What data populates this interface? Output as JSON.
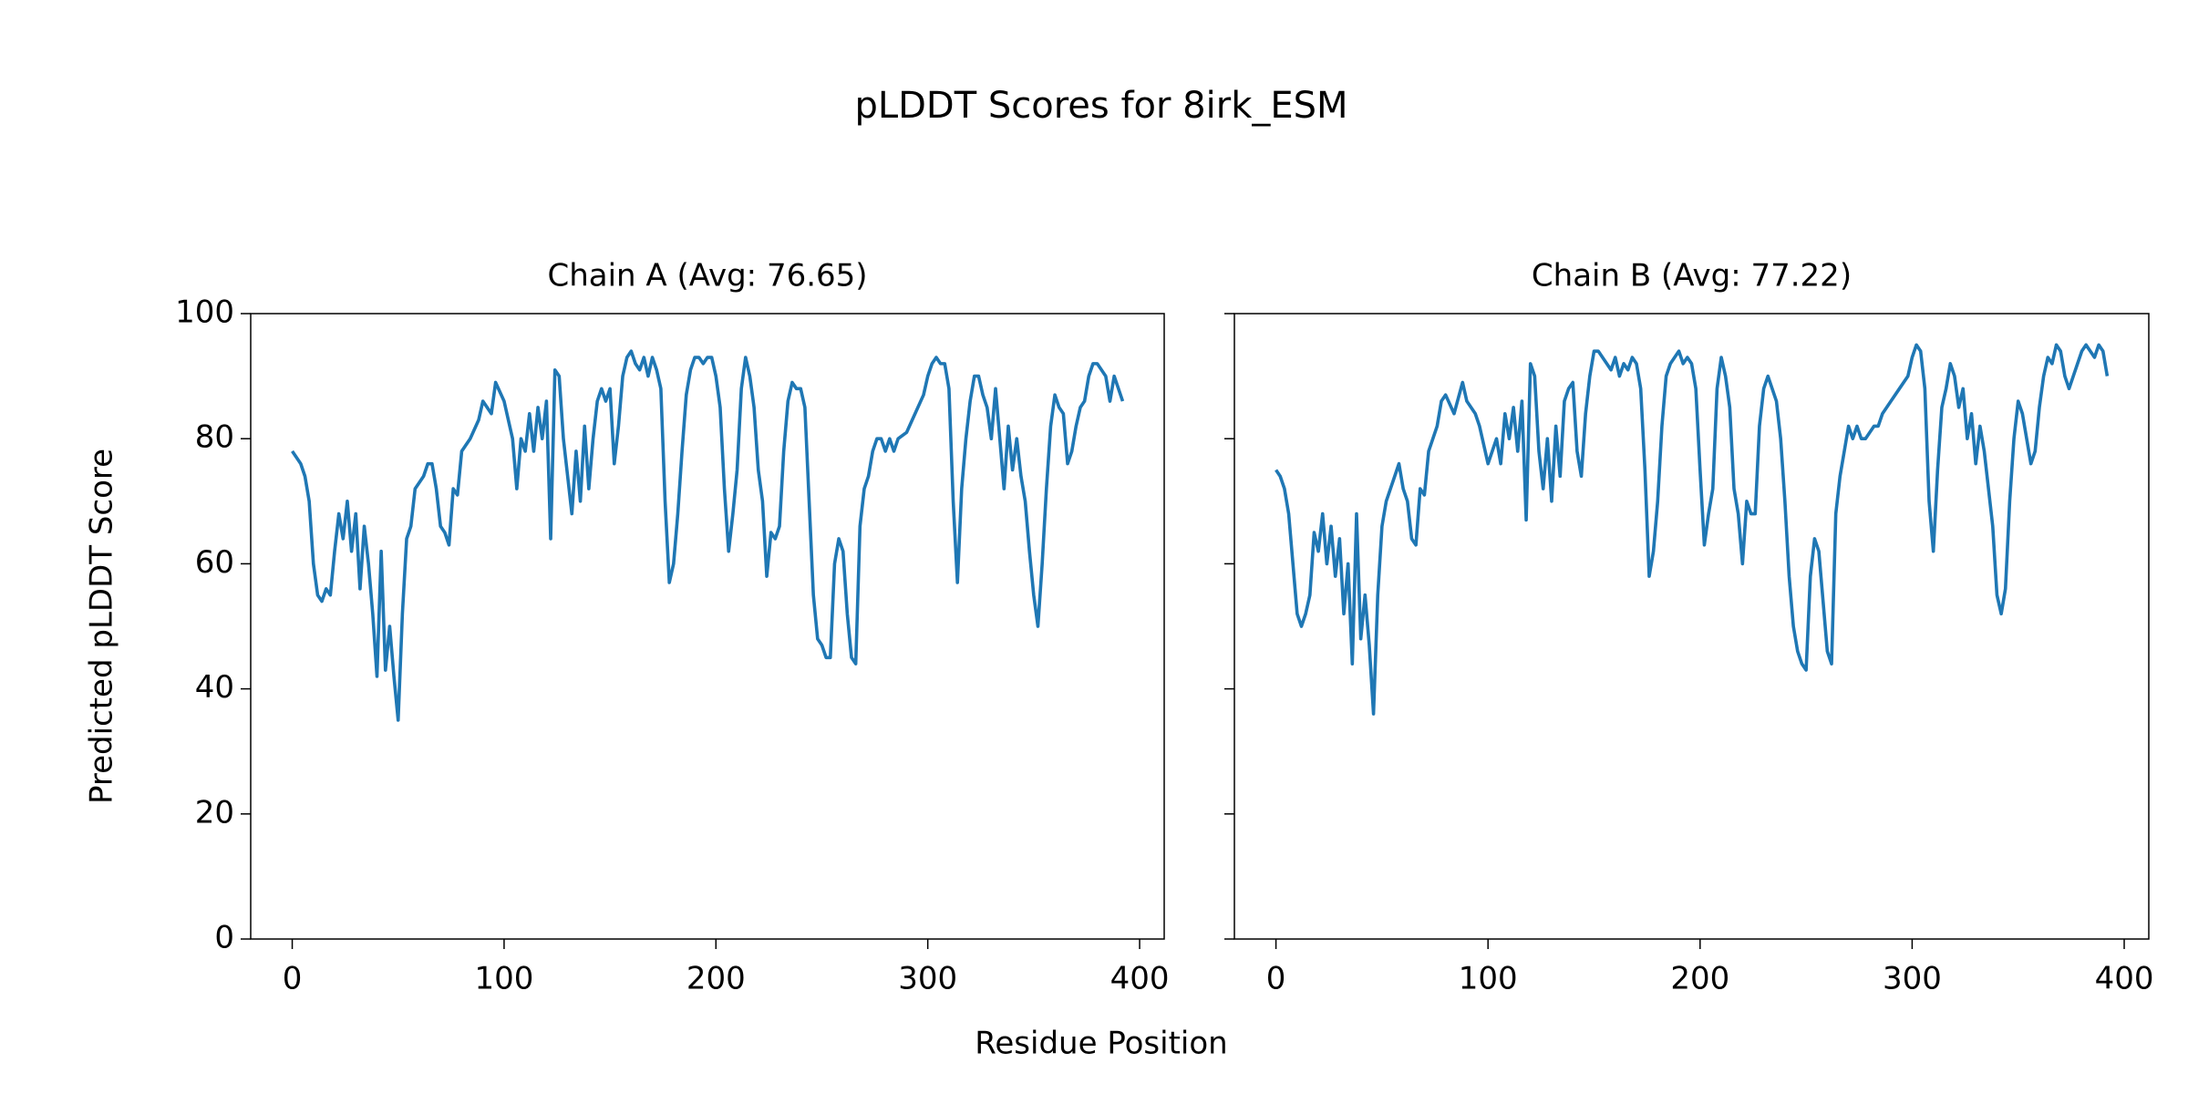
{
  "title": "pLDDT Scores for 8irk_ESM",
  "x_label": "Residue Position",
  "y_label": "Predicted pLDDT Score",
  "chart_data": [
    {
      "type": "line",
      "title": "Chain A (Avg: 76.65)",
      "x": [
        0,
        2,
        4,
        6,
        8,
        10,
        12,
        14,
        16,
        18,
        20,
        22,
        24,
        26,
        28,
        30,
        32,
        34,
        36,
        38,
        40,
        42,
        44,
        46,
        48,
        50,
        52,
        54,
        56,
        58,
        60,
        62,
        64,
        66,
        68,
        70,
        72,
        74,
        76,
        78,
        80,
        84,
        88,
        90,
        94,
        96,
        100,
        104,
        106,
        108,
        110,
        112,
        114,
        116,
        118,
        120,
        122,
        124,
        126,
        128,
        130,
        132,
        134,
        136,
        138,
        140,
        142,
        144,
        146,
        148,
        150,
        152,
        154,
        156,
        158,
        160,
        162,
        164,
        166,
        168,
        170,
        172,
        174,
        176,
        178,
        180,
        182,
        184,
        186,
        188,
        190,
        192,
        194,
        196,
        198,
        200,
        202,
        204,
        206,
        208,
        210,
        212,
        214,
        216,
        218,
        220,
        222,
        224,
        226,
        228,
        230,
        232,
        234,
        236,
        238,
        240,
        242,
        244,
        246,
        248,
        250,
        252,
        254,
        256,
        258,
        260,
        262,
        264,
        266,
        268,
        270,
        272,
        274,
        276,
        278,
        280,
        282,
        284,
        286,
        290,
        294,
        298,
        300,
        302,
        304,
        306,
        308,
        310,
        312,
        314,
        316,
        318,
        320,
        322,
        324,
        326,
        328,
        330,
        332,
        334,
        336,
        338,
        340,
        342,
        344,
        346,
        348,
        350,
        352,
        354,
        356,
        358,
        360,
        362,
        364,
        366,
        368,
        370,
        372,
        374,
        376,
        378,
        380,
        382,
        384,
        386,
        388,
        390,
        392
      ],
      "series": [
        {
          "color": "#1f77b4",
          "values": [
            78,
            77,
            76,
            74,
            70,
            60,
            55,
            54,
            56,
            55,
            62,
            68,
            64,
            70,
            62,
            68,
            56,
            66,
            60,
            52,
            42,
            62,
            43,
            50,
            42,
            35,
            52,
            64,
            66,
            72,
            73,
            74,
            76,
            76,
            72,
            66,
            65,
            63,
            72,
            71,
            78,
            80,
            83,
            86,
            84,
            89,
            86,
            80,
            72,
            80,
            78,
            84,
            78,
            85,
            80,
            86,
            64,
            91,
            90,
            80,
            74,
            68,
            78,
            70,
            82,
            72,
            80,
            86,
            88,
            86,
            88,
            76,
            82,
            90,
            93,
            94,
            92,
            91,
            93,
            90,
            93,
            91,
            88,
            70,
            57,
            60,
            68,
            78,
            87,
            91,
            93,
            93,
            92,
            93,
            93,
            90,
            85,
            72,
            62,
            68,
            75,
            88,
            93,
            90,
            85,
            75,
            70,
            58,
            65,
            64,
            66,
            78,
            86,
            89,
            88,
            88,
            85,
            70,
            55,
            48,
            47,
            45,
            45,
            60,
            64,
            62,
            52,
            45,
            44,
            66,
            72,
            74,
            78,
            80,
            80,
            78,
            80,
            78,
            80,
            81,
            84,
            87,
            90,
            92,
            93,
            92,
            92,
            88,
            70,
            57,
            72,
            80,
            86,
            90,
            90,
            87,
            85,
            80,
            88,
            80,
            72,
            82,
            75,
            80,
            74,
            70,
            62,
            55,
            50,
            60,
            72,
            82,
            87,
            85,
            84,
            76,
            78,
            82,
            85,
            86,
            90,
            92,
            92,
            91,
            90,
            86,
            90,
            88,
            86
          ]
        }
      ],
      "xlim": [
        -19.6,
        411.6
      ],
      "xticks": [
        0,
        100,
        200,
        300,
        400
      ],
      "ylim": [
        0,
        100
      ],
      "yticks": [
        0,
        20,
        40,
        60,
        80,
        100
      ]
    },
    {
      "type": "line",
      "title": "Chain B (Avg: 77.22)",
      "x": [
        0,
        2,
        4,
        6,
        8,
        10,
        12,
        14,
        16,
        18,
        20,
        22,
        24,
        26,
        28,
        30,
        32,
        34,
        36,
        38,
        40,
        42,
        44,
        46,
        48,
        50,
        52,
        54,
        56,
        58,
        60,
        62,
        64,
        66,
        68,
        70,
        72,
        74,
        76,
        78,
        80,
        84,
        88,
        90,
        94,
        96,
        100,
        104,
        106,
        108,
        110,
        112,
        114,
        116,
        118,
        120,
        122,
        124,
        126,
        128,
        130,
        132,
        134,
        136,
        138,
        140,
        142,
        144,
        146,
        148,
        150,
        152,
        154,
        156,
        158,
        160,
        162,
        164,
        166,
        168,
        170,
        172,
        174,
        176,
        178,
        180,
        182,
        184,
        186,
        188,
        190,
        192,
        194,
        196,
        198,
        200,
        202,
        204,
        206,
        208,
        210,
        212,
        214,
        216,
        218,
        220,
        222,
        224,
        226,
        228,
        230,
        232,
        234,
        236,
        238,
        240,
        242,
        244,
        246,
        248,
        250,
        252,
        254,
        256,
        258,
        260,
        262,
        264,
        266,
        268,
        270,
        272,
        274,
        276,
        278,
        280,
        282,
        284,
        286,
        290,
        294,
        298,
        300,
        302,
        304,
        306,
        308,
        310,
        312,
        314,
        316,
        318,
        320,
        322,
        324,
        326,
        328,
        330,
        332,
        334,
        336,
        338,
        340,
        342,
        344,
        346,
        348,
        350,
        352,
        354,
        356,
        358,
        360,
        362,
        364,
        366,
        368,
        370,
        372,
        374,
        376,
        378,
        380,
        382,
        384,
        386,
        388,
        390,
        392
      ],
      "series": [
        {
          "color": "#1f77b4",
          "values": [
            75,
            74,
            72,
            68,
            60,
            52,
            50,
            52,
            55,
            65,
            62,
            68,
            60,
            66,
            58,
            64,
            52,
            60,
            44,
            68,
            48,
            55,
            47,
            36,
            55,
            66,
            70,
            72,
            74,
            76,
            72,
            70,
            64,
            63,
            72,
            71,
            78,
            80,
            82,
            86,
            87,
            84,
            89,
            86,
            84,
            82,
            76,
            80,
            76,
            84,
            80,
            85,
            78,
            86,
            67,
            92,
            90,
            78,
            72,
            80,
            70,
            82,
            74,
            86,
            88,
            89,
            78,
            74,
            84,
            90,
            94,
            94,
            93,
            92,
            91,
            93,
            90,
            92,
            91,
            93,
            92,
            88,
            75,
            58,
            62,
            70,
            82,
            90,
            92,
            93,
            94,
            92,
            93,
            92,
            88,
            75,
            63,
            68,
            72,
            88,
            93,
            90,
            85,
            72,
            68,
            60,
            70,
            68,
            68,
            82,
            88,
            90,
            88,
            86,
            80,
            70,
            58,
            50,
            46,
            44,
            43,
            58,
            64,
            62,
            54,
            46,
            44,
            68,
            74,
            78,
            82,
            80,
            82,
            80,
            80,
            81,
            82,
            82,
            84,
            86,
            88,
            90,
            93,
            95,
            94,
            88,
            70,
            62,
            75,
            85,
            88,
            92,
            90,
            85,
            88,
            80,
            84,
            76,
            82,
            78,
            72,
            66,
            55,
            52,
            56,
            70,
            80,
            86,
            84,
            80,
            76,
            78,
            85,
            90,
            93,
            92,
            95,
            94,
            90,
            88,
            90,
            92,
            94,
            95,
            94,
            93,
            95,
            94,
            90
          ]
        }
      ],
      "xlim": [
        -19.6,
        411.6
      ],
      "xticks": [
        0,
        100,
        200,
        300,
        400
      ],
      "ylim": [
        0,
        100
      ],
      "yticks": [
        0,
        20,
        40,
        60,
        80,
        100
      ]
    }
  ]
}
